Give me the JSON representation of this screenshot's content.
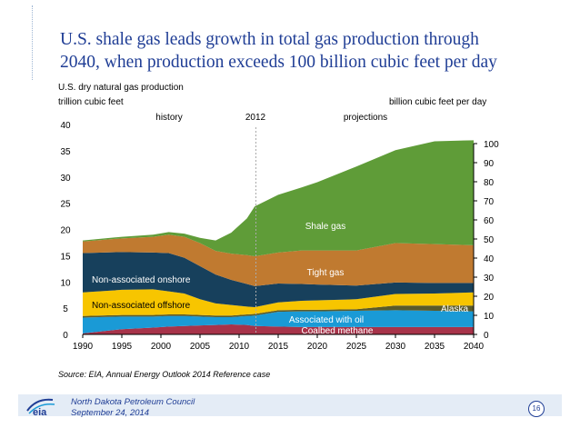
{
  "slide": {
    "title_line1": "U.S. shale gas leads growth in total gas production through",
    "title_line2": "2040, when production exceeds 100 billion cubic feet per day",
    "source": "Source:  EIA, Annual Energy Outlook 2014 Reference case",
    "footer_line1": "North Dakota Petroleum Council",
    "footer_line2": "September 24, 2014",
    "page_number": "16",
    "logo_text": "eia"
  },
  "colors": {
    "title": "#1f3d95",
    "coalbed": "#a7334a",
    "associated": "#1a9ad6",
    "alaska": "#5a5a2a",
    "offshore": "#f7c500",
    "onshore": "#17405c",
    "tight": "#c07a30",
    "shale": "#5f9c38",
    "divider": "#aaaaaa"
  },
  "chart_data": {
    "type": "area",
    "title": "U.S. dry natural gas production",
    "ylabel": "trillion cubic feet",
    "y2label": "billion cubic feet per day",
    "period_labels": {
      "history": "history",
      "split": "2012",
      "projections": "projections"
    },
    "x": [
      1990,
      1995,
      1999,
      2001,
      2003,
      2005,
      2007,
      2009,
      2011,
      2012,
      2015,
      2018,
      2020,
      2025,
      2030,
      2035,
      2040
    ],
    "xticks": [
      1990,
      1995,
      2000,
      2005,
      2010,
      2015,
      2020,
      2025,
      2030,
      2035,
      2040
    ],
    "xlim": [
      1990,
      2040
    ],
    "ylim": [
      0,
      40
    ],
    "yticks": [
      0,
      5,
      10,
      15,
      20,
      25,
      30,
      35,
      40
    ],
    "y2lim": [
      0,
      110
    ],
    "y2ticks": [
      0,
      10,
      20,
      30,
      40,
      50,
      60,
      70,
      80,
      90,
      100
    ],
    "series": [
      {
        "name": "Coalbed methane",
        "color": "#a7334a",
        "values": [
          0.2,
          1.0,
          1.3,
          1.5,
          1.6,
          1.7,
          1.8,
          1.9,
          1.8,
          1.6,
          1.5,
          1.4,
          1.4,
          1.4,
          1.4,
          1.4,
          1.4
        ]
      },
      {
        "name": "Associated with oil",
        "color": "#1a9ad6",
        "values": [
          3.0,
          2.4,
          2.1,
          2.0,
          1.9,
          1.7,
          1.5,
          1.4,
          1.7,
          2.0,
          2.8,
          3.0,
          3.0,
          3.1,
          3.2,
          3.1,
          3.0
        ]
      },
      {
        "name": "Alaska",
        "color": "#5a5a2a",
        "values": [
          0.3,
          0.3,
          0.3,
          0.3,
          0.3,
          0.3,
          0.3,
          0.3,
          0.3,
          0.3,
          0.3,
          0.3,
          0.3,
          0.3,
          0.9,
          1.0,
          1.1
        ]
      },
      {
        "name": "Non-associated offshore",
        "color": "#f7c500",
        "values": [
          4.5,
          4.8,
          4.9,
          4.4,
          4.0,
          3.0,
          2.3,
          2.0,
          1.5,
          1.3,
          1.5,
          1.7,
          1.8,
          1.9,
          2.2,
          2.3,
          2.5
        ]
      },
      {
        "name": "Non-associated onshore",
        "color": "#17405c",
        "values": [
          7.5,
          7.2,
          7.0,
          7.3,
          6.8,
          6.3,
          5.5,
          4.8,
          4.3,
          4.0,
          3.6,
          3.2,
          3.0,
          2.6,
          2.2,
          2.0,
          1.8
        ]
      },
      {
        "name": "Tight gas",
        "color": "#c07a30",
        "values": [
          2.2,
          2.6,
          3.0,
          3.5,
          4.0,
          4.4,
          4.5,
          5.0,
          5.5,
          5.7,
          5.9,
          6.4,
          6.5,
          6.7,
          7.5,
          7.4,
          7.2
        ]
      },
      {
        "name": "Shale gas",
        "color": "#5f9c38",
        "values": [
          0.2,
          0.3,
          0.4,
          0.5,
          0.6,
          1.0,
          2.0,
          4.0,
          7.0,
          9.5,
          11.0,
          12.0,
          13.0,
          16.0,
          17.7,
          19.6,
          20.0
        ]
      }
    ],
    "series_labels": {
      "coalbed": "Coalbed methane",
      "associated": "Associated with oil",
      "alaska": "Alaska",
      "offshore": "Non-associated offshore",
      "onshore": "Non-associated onshore",
      "tight": "Tight gas",
      "shale": "Shale gas"
    }
  }
}
